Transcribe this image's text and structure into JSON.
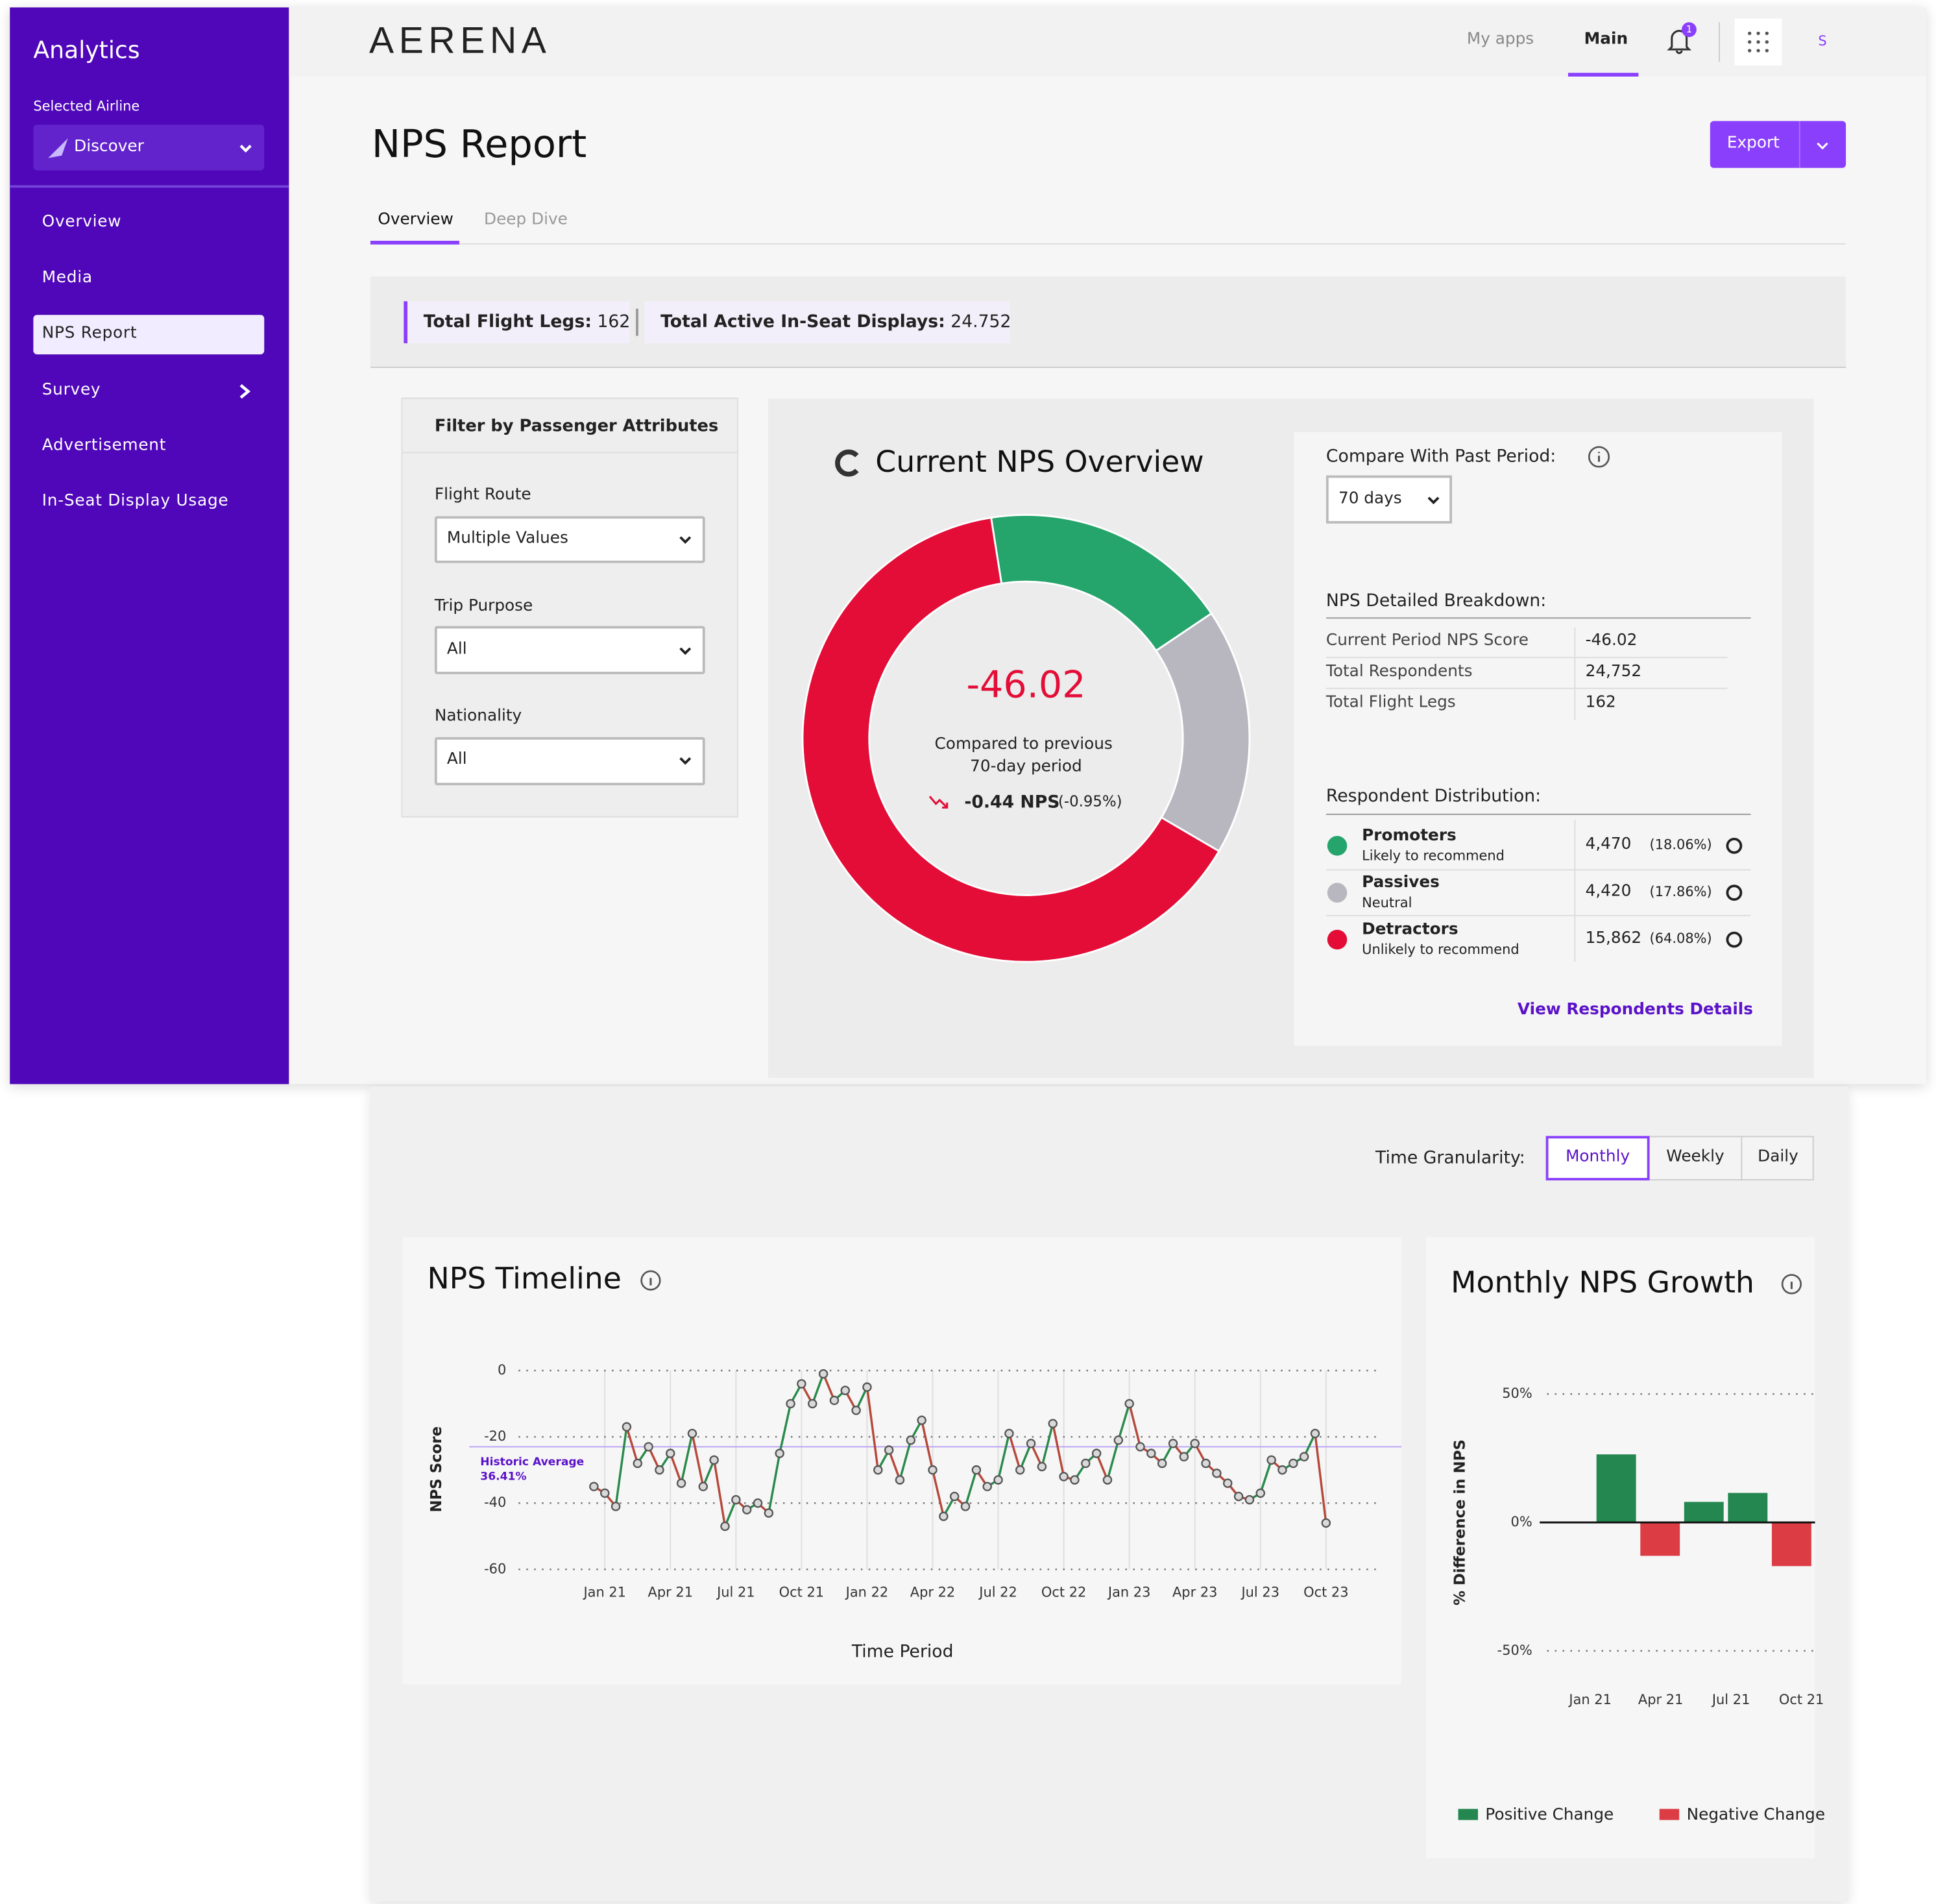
{
  "sidebar": {
    "title": "Analytics",
    "airline_label": "Selected Airline",
    "airline": "Discover",
    "nav": [
      "Overview",
      "Media",
      "NPS Report",
      "Survey",
      "Advertisement",
      "In-Seat Display Usage"
    ]
  },
  "topbar": {
    "logo": "AERENA",
    "links": [
      "My apps",
      "Main"
    ],
    "notifications": "1",
    "avatar": "S"
  },
  "page": {
    "title": "NPS Report",
    "export": "Export",
    "tabs": [
      "Overview",
      "Deep Dive"
    ]
  },
  "summary": [
    {
      "label": "Total Flight Legs:",
      "value": "162"
    },
    {
      "label": "Total Active In-Seat Displays:",
      "value": "24.752"
    }
  ],
  "filters": {
    "title": "Filter by Passenger Attributes",
    "fields": [
      {
        "label": "Flight Route",
        "value": "Multiple Values"
      },
      {
        "label": "Trip Purpose",
        "value": "All"
      },
      {
        "label": "Nationality",
        "value": "All"
      }
    ]
  },
  "overview": {
    "title": "Current NPS Overview",
    "score": "-46.02",
    "compare_line1": "Compared to previous",
    "compare_line2": "70-day period",
    "delta": "-0.44 NPS",
    "delta_pct": "(-0.95%)"
  },
  "side_panel": {
    "compare_label": "Compare With Past Period:",
    "period": "70 days",
    "breakdown_title": "NPS Detailed Breakdown:",
    "breakdown": [
      [
        "Current Period NPS Score",
        "-46.02"
      ],
      [
        "Total Respondents",
        "24,752"
      ],
      [
        "Total Flight Legs",
        "162"
      ]
    ],
    "distribution_title": "Respondent Distribution:",
    "distribution": [
      {
        "desc": "Likely to recommend",
        "count": "4,470"
      },
      {
        "desc": "Neutral",
        "count": "4,420"
      },
      {
        "desc": "Unlikely to recommend",
        "count": "15,862"
      }
    ],
    "link": "View Respondents Details"
  },
  "granularity": {
    "label": "Time Granularity:",
    "options": [
      "Monthly",
      "Weekly",
      "Daily"
    ]
  },
  "chart_data": [
    {
      "type": "pie",
      "categories": [
        "Promoters",
        "Passives",
        "Detractors"
      ],
      "values": [
        18.06,
        17.86,
        64.08
      ],
      "value_labels": [
        "(18.06%)",
        "(17.86%)",
        "(64.08%)"
      ],
      "colors": [
        "#25a46c",
        "#b8b7c0",
        "#e30d37"
      ]
    },
    {
      "type": "line",
      "title": "NPS Timeline",
      "xlabel": "Time Period",
      "ylabel": "NPS Score",
      "categories": [
        null,
        "Jan 21",
        null,
        null,
        null,
        null,
        null,
        "Apr 21",
        null,
        null,
        null,
        null,
        null,
        "Jul 21",
        null,
        null,
        null,
        null,
        null,
        "Oct 21",
        null,
        null,
        null,
        null,
        null,
        "Jan 22",
        null,
        null,
        null,
        null,
        null,
        "Apr 22",
        null,
        null,
        null,
        null,
        null,
        "Jul 22",
        null,
        null,
        null,
        null,
        null,
        "Oct 22",
        null,
        null,
        null,
        null,
        null,
        "Jan 23",
        null,
        null,
        null,
        null,
        null,
        "Apr 23",
        null,
        null,
        null,
        null,
        null,
        "Jul 23",
        null,
        null,
        null,
        null,
        null,
        "Oct 23"
      ],
      "values": [
        -35,
        -37,
        -41,
        -17,
        -28,
        -23,
        -30,
        -25,
        -34,
        -19,
        -35,
        -27,
        -47,
        -39,
        -42,
        -40,
        -43,
        -25,
        -10,
        -4,
        -10,
        -1,
        -9,
        -6,
        -12,
        -5,
        -30,
        -24,
        -33,
        -21,
        -15,
        -30,
        -44,
        -38,
        -41,
        -30,
        -35,
        -33,
        -19,
        -30,
        -22,
        -29,
        -16,
        -32,
        -33,
        -28,
        -25,
        -33,
        -21,
        -10,
        -23,
        -25,
        -28,
        -22,
        -26,
        -22,
        -28,
        -31,
        -34,
        -38,
        -39,
        -37,
        -27,
        -30,
        -28,
        -26,
        -19,
        -46
      ],
      "color_up": "#2a8a4c",
      "color_down": "#b5493c",
      "marker_color": "#d9d9d9",
      "ylim": [
        -60,
        0
      ],
      "yticks": [
        0,
        -20,
        -40,
        -60
      ],
      "grid": true,
      "average": -23,
      "average_color": "#b9a2f2",
      "annotation": [
        "Historic Average",
        "36.41%"
      ]
    },
    {
      "type": "bar",
      "title": "Monthly NPS Growth",
      "ylabel": "% Difference in NPS",
      "values": [
        26.5,
        -13,
        8,
        11.5,
        -17
      ],
      "xtick_labels": [
        "Jan 21",
        "Apr 21",
        "Jul 21",
        "Oct 21"
      ],
      "ylim": [
        -50,
        50
      ],
      "yticks": [
        {
          "value": 50,
          "label": "50%"
        },
        {
          "value": 0,
          "label": "0%"
        },
        {
          "value": -50,
          "label": "-50%"
        }
      ],
      "legend": [
        {
          "name": "Positive Change",
          "color": "#23874f"
        },
        {
          "name": "Negative Change",
          "color": "#dc3d45"
        }
      ]
    }
  ]
}
